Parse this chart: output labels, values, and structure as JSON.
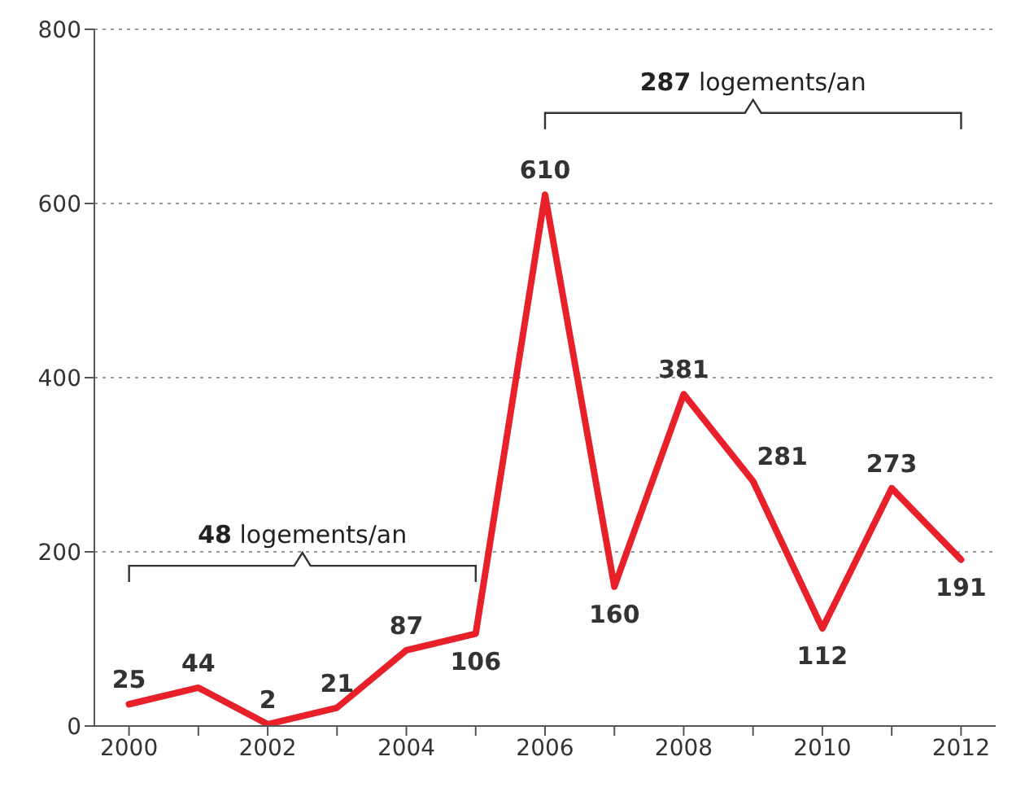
{
  "chart_data": {
    "type": "line",
    "x": [
      2000,
      2001,
      2002,
      2003,
      2004,
      2005,
      2006,
      2007,
      2008,
      2009,
      2010,
      2011,
      2012
    ],
    "series": [
      {
        "color": "#e8202a",
        "values": [
          25,
          44,
          2,
          21,
          87,
          106,
          610,
          160,
          381,
          281,
          112,
          273,
          191
        ]
      }
    ],
    "data_labels": true,
    "xlim": [
      1999.5,
      2012.5
    ],
    "xticks": [
      2000,
      {
        "value": 2001,
        "label": null
      },
      2002,
      {
        "value": 2003,
        "label": null
      },
      2004,
      {
        "value": 2005,
        "label": null
      },
      2006,
      {
        "value": 2007,
        "label": null
      },
      2008,
      {
        "value": 2009,
        "label": null
      },
      2010,
      {
        "value": 2011,
        "label": null
      },
      2012
    ],
    "ylim": [
      0,
      800
    ],
    "yticks": [
      0,
      200,
      400,
      600,
      800
    ],
    "grid": "y",
    "marker": "none",
    "line_style": "solid",
    "annotations": [
      "48 logements/an",
      "287 logements/an"
    ]
  }
}
